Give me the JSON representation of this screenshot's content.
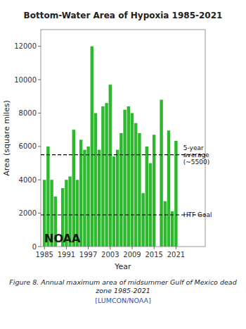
{
  "chart_data": {
    "type": "bar",
    "title": "Bottom-Water Area of Hypoxia 1985-2021",
    "x_label": "Year",
    "y_label": "Area (square miles)",
    "x": [
      1985,
      1986,
      1987,
      1988,
      1990,
      1991,
      1992,
      1993,
      1994,
      1995,
      1996,
      1997,
      1998,
      1999,
      2000,
      2001,
      2002,
      2003,
      2004,
      2005,
      2006,
      2007,
      2008,
      2009,
      2010,
      2011,
      2012,
      2013,
      2014,
      2015,
      2017,
      2018,
      2019,
      2020,
      2021
    ],
    "values": [
      4000,
      6000,
      4000,
      3000,
      3500,
      4000,
      4200,
      7000,
      4000,
      6400,
      5800,
      6000,
      12000,
      8000,
      5800,
      8400,
      8600,
      9700,
      5400,
      5800,
      6800,
      8200,
      8400,
      8000,
      7400,
      6800,
      3200,
      6000,
      5000,
      6700,
      8800,
      2720,
      6952,
      2117,
      6334
    ],
    "color": "#2db82d",
    "xlim": [
      1984,
      2029
    ],
    "xticks": [
      1985,
      1991,
      1997,
      2003,
      2009,
      2015,
      2021
    ],
    "ylim": [
      0,
      13000
    ],
    "yticks": [
      0,
      2000,
      4000,
      6000,
      8000,
      10000,
      12000
    ],
    "grid": false,
    "hlines": [
      {
        "y": 5500,
        "label": "5-year\naverage\n(~5500)",
        "color": "#000000",
        "line_style": "dashed"
      },
      {
        "y": 1900,
        "label": "HTF Goal",
        "color": "#000000",
        "line_style": "dashed"
      }
    ],
    "annotations": [
      "NOAA",
      "Figure 8. Annual maximum area of midsummer Gulf of Mexico dead zone 1985-2021",
      "[LUMCON/NOAA]"
    ]
  }
}
